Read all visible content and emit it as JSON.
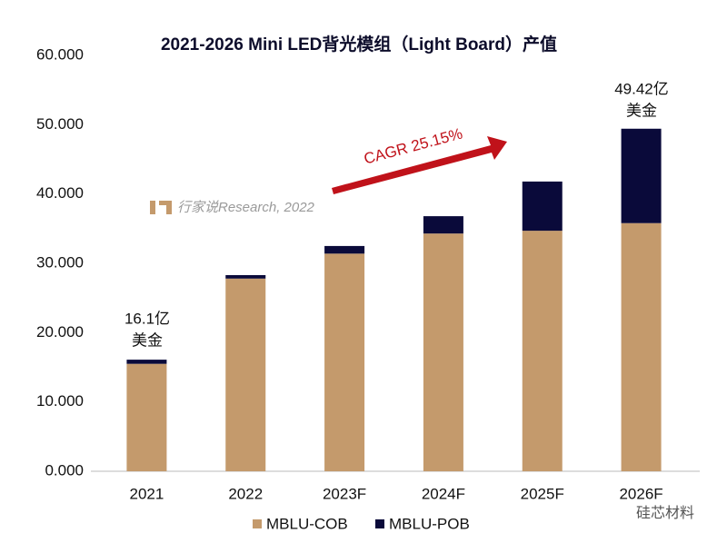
{
  "chart_data": {
    "type": "stacked_bar",
    "title": "2021-2026 Mini LED背光模组（Light Board）产值",
    "categories": [
      "2021",
      "2022",
      "2023F",
      "2024F",
      "2025F",
      "2026F"
    ],
    "series": [
      {
        "name": "MBLU-COB",
        "color": "#c49a6c",
        "values": [
          15.5,
          27.8,
          31.4,
          34.3,
          34.7,
          35.8
        ]
      },
      {
        "name": "MBLU-POB",
        "color": "#0a0a3a",
        "values": [
          0.6,
          0.5,
          1.1,
          2.5,
          7.1,
          13.62
        ]
      }
    ],
    "ylim": [
      0,
      60
    ],
    "yticks": [
      {
        "value": 0,
        "label": "0.000"
      },
      {
        "value": 10,
        "label": "10.000"
      },
      {
        "value": 20,
        "label": "20.000"
      },
      {
        "value": 30,
        "label": "30.000"
      },
      {
        "value": 40,
        "label": "40.000"
      },
      {
        "value": 50,
        "label": "50.000"
      },
      {
        "value": 60,
        "label": "60.000"
      }
    ],
    "grid": false,
    "legend": "bottom",
    "annotations": [
      "16.1亿",
      "美金",
      "49.42亿",
      "美金",
      "CAGR 25.15%",
      "行家说Research, 2022",
      "硅芯材料"
    ]
  }
}
